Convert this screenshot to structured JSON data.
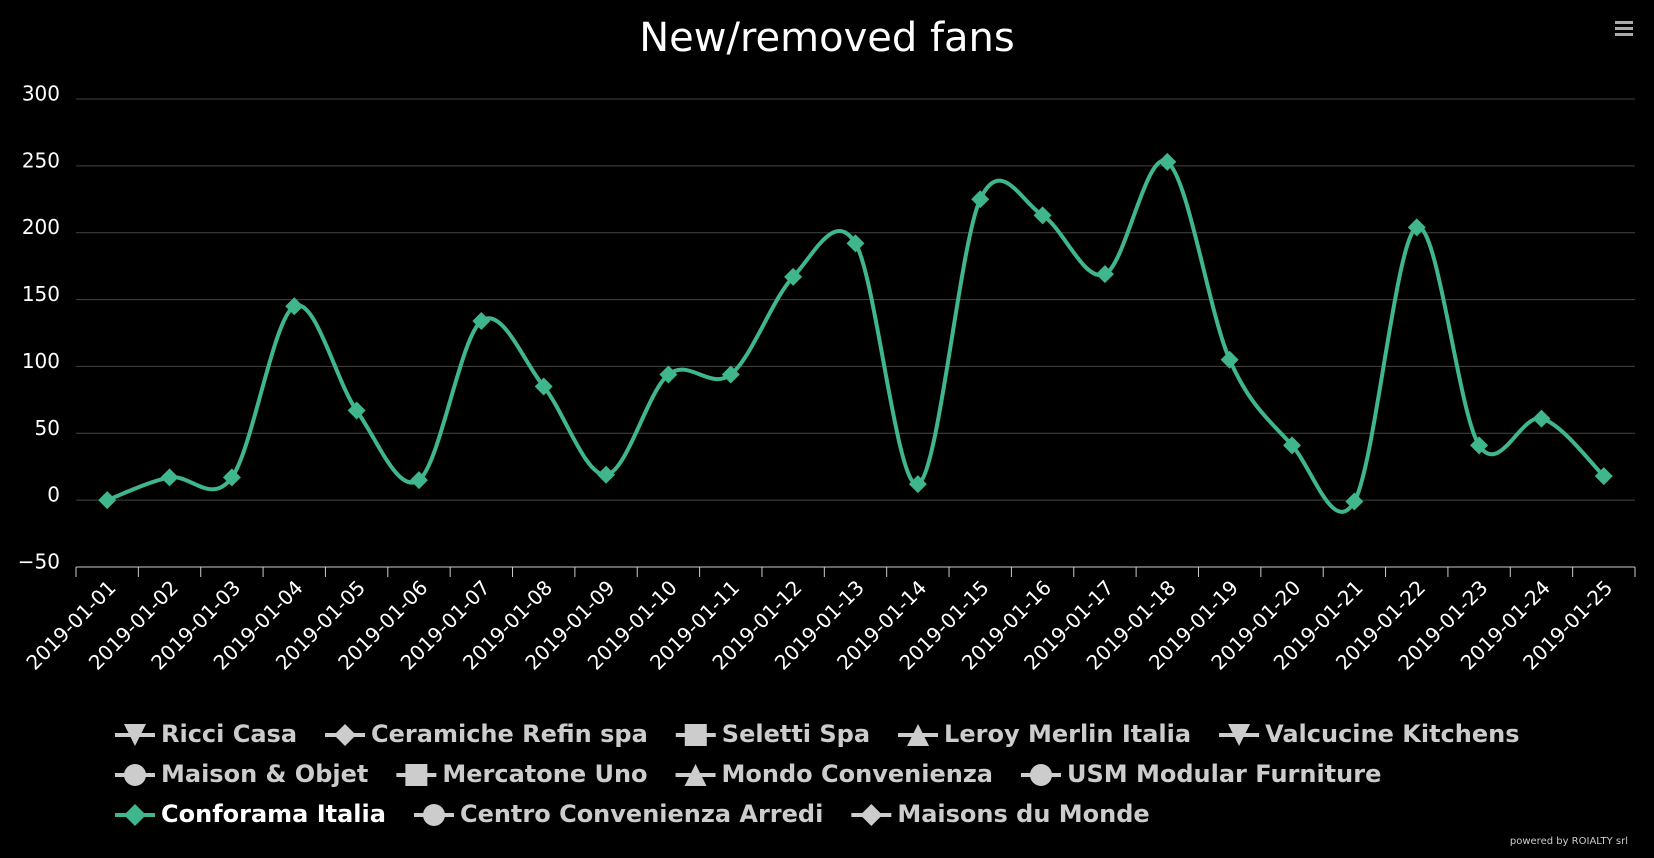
{
  "chart_data": {
    "type": "line",
    "title": "New/removed fans",
    "categories": [
      "2019-01-01",
      "2019-01-02",
      "2019-01-03",
      "2019-01-04",
      "2019-01-05",
      "2019-01-06",
      "2019-01-07",
      "2019-01-08",
      "2019-01-09",
      "2019-01-10",
      "2019-01-11",
      "2019-01-12",
      "2019-01-13",
      "2019-01-14",
      "2019-01-15",
      "2019-01-16",
      "2019-01-17",
      "2019-01-18",
      "2019-01-19",
      "2019-01-20",
      "2019-01-21",
      "2019-01-22",
      "2019-01-23",
      "2019-01-24",
      "2019-01-25"
    ],
    "series": [
      {
        "name": "Ricci Casa",
        "symbol": "triangle-down",
        "visible": false
      },
      {
        "name": "Ceramiche Refin spa",
        "symbol": "diamond",
        "visible": false
      },
      {
        "name": "Seletti Spa",
        "symbol": "square",
        "visible": false
      },
      {
        "name": "Leroy Merlin Italia",
        "symbol": "triangle",
        "visible": false
      },
      {
        "name": "Valcucine Kitchens",
        "symbol": "triangle-down",
        "visible": false
      },
      {
        "name": "Maison & Objet",
        "symbol": "circle",
        "visible": false
      },
      {
        "name": "Mercatone Uno",
        "symbol": "square",
        "visible": false
      },
      {
        "name": "Mondo Convenienza",
        "symbol": "triangle",
        "visible": false
      },
      {
        "name": "USM Modular Furniture",
        "symbol": "circle",
        "visible": false
      },
      {
        "name": "Conforama Italia",
        "symbol": "diamond",
        "visible": true,
        "color": "#3fb68b",
        "values": [
          0,
          17,
          17,
          145,
          67,
          15,
          134,
          85,
          19,
          94,
          94,
          167,
          192,
          12,
          225,
          213,
          169,
          253,
          105,
          41,
          -1,
          204,
          41,
          61,
          18
        ]
      },
      {
        "name": "Centro Convenienza Arredi",
        "symbol": "circle",
        "visible": false
      },
      {
        "name": "Maisons du Monde",
        "symbol": "diamond",
        "visible": false
      }
    ],
    "ylim": [
      -50,
      300
    ],
    "yticks": [
      {
        "value": -50,
        "label": "−50"
      },
      0,
      50,
      100,
      150,
      200,
      250,
      300
    ],
    "grid": true,
    "credit": "powered by ROIALTY srl"
  }
}
